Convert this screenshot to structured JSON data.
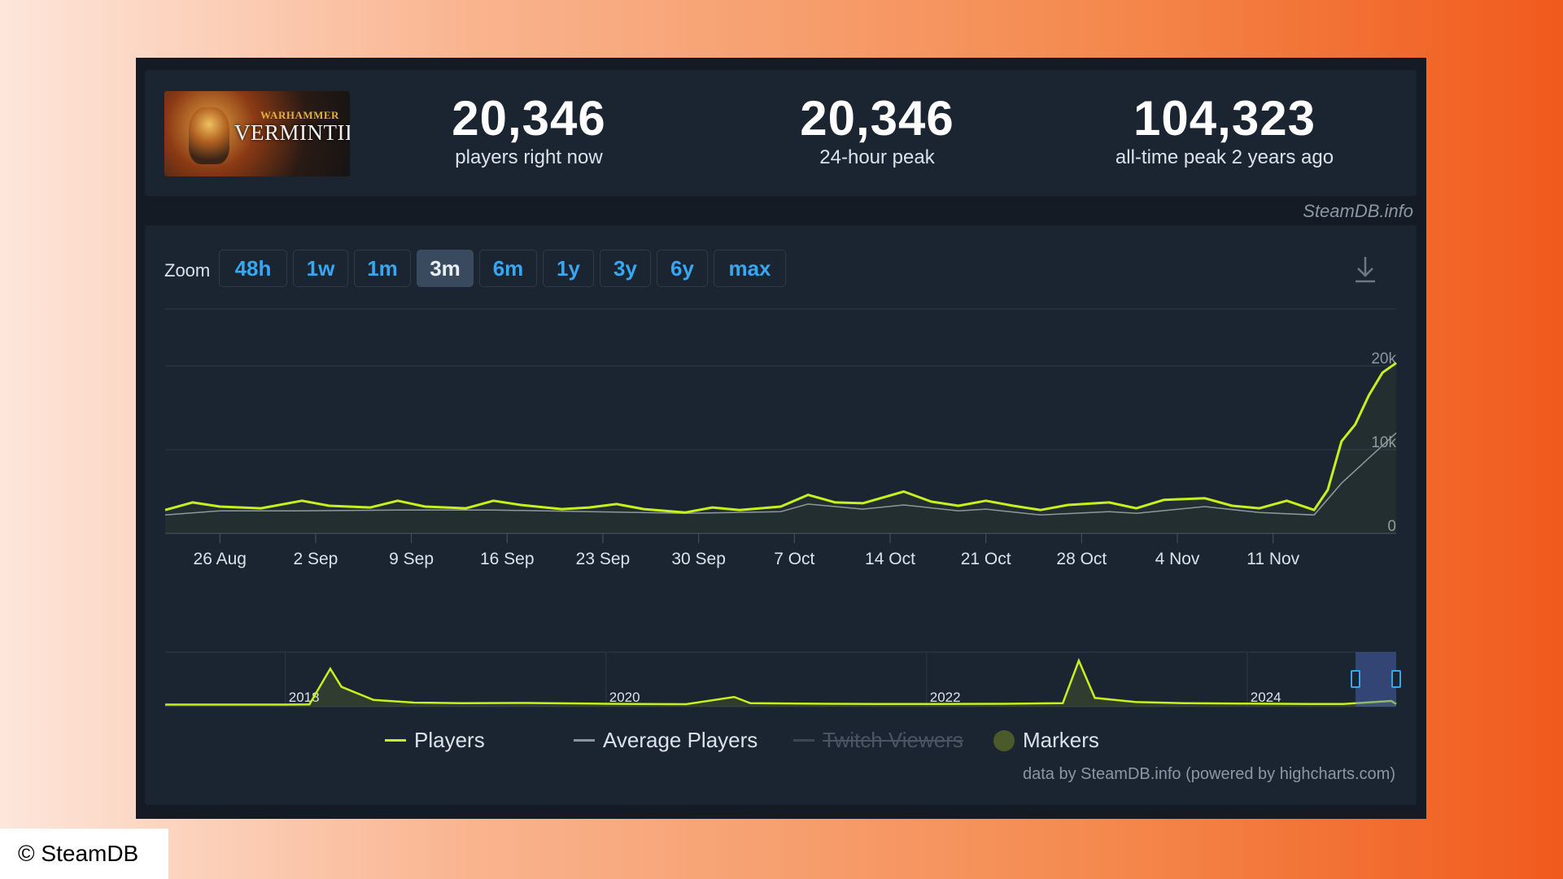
{
  "game": {
    "image_subtitle": "WARHAMMER",
    "image_title": "VERMINTIDE"
  },
  "stats": [
    {
      "value": "20,346",
      "label": "players right now"
    },
    {
      "value": "20,346",
      "label": "24-hour peak"
    },
    {
      "value": "104,323",
      "label": "all-time peak 2 years ago"
    }
  ],
  "credit": "SteamDB.info",
  "zoom": {
    "label": "Zoom",
    "buttons": [
      "48h",
      "1w",
      "1m",
      "3m",
      "6m",
      "1y",
      "3y",
      "6y",
      "max"
    ],
    "active": "3m"
  },
  "icons": {
    "download": "download-icon"
  },
  "colors": {
    "players": "#c8f01e",
    "average": "#8a95a2",
    "twitch": "#3b4656",
    "markers": "#4b5a2a",
    "active_zoom": "#3a4a5e",
    "zoom_text": "#37a7f2"
  },
  "chart_data": {
    "type": "line",
    "x_tick_labels": [
      "26 Aug",
      "2 Sep",
      "9 Sep",
      "16 Sep",
      "23 Sep",
      "30 Sep",
      "7 Oct",
      "14 Oct",
      "21 Oct",
      "28 Oct",
      "4 Nov",
      "11 Nov"
    ],
    "y_tick_labels": [
      "0",
      "10k",
      "20k"
    ],
    "ylim": [
      0,
      20000
    ],
    "x_start": "2024-08-22",
    "x_end": "2024-11-20",
    "series": [
      {
        "name": "Players",
        "points": [
          [
            "2024-08-22",
            2800
          ],
          [
            "2024-08-24",
            3700
          ],
          [
            "2024-08-26",
            3200
          ],
          [
            "2024-08-29",
            3000
          ],
          [
            "2024-09-01",
            3900
          ],
          [
            "2024-09-03",
            3300
          ],
          [
            "2024-09-06",
            3100
          ],
          [
            "2024-09-08",
            3900
          ],
          [
            "2024-09-10",
            3200
          ],
          [
            "2024-09-13",
            3000
          ],
          [
            "2024-09-15",
            3900
          ],
          [
            "2024-09-17",
            3400
          ],
          [
            "2024-09-20",
            2900
          ],
          [
            "2024-09-22",
            3100
          ],
          [
            "2024-09-24",
            3500
          ],
          [
            "2024-09-26",
            2900
          ],
          [
            "2024-09-29",
            2500
          ],
          [
            "2024-10-01",
            3100
          ],
          [
            "2024-10-03",
            2800
          ],
          [
            "2024-10-06",
            3200
          ],
          [
            "2024-10-08",
            4600
          ],
          [
            "2024-10-10",
            3700
          ],
          [
            "2024-10-12",
            3600
          ],
          [
            "2024-10-15",
            5000
          ],
          [
            "2024-10-17",
            3800
          ],
          [
            "2024-10-19",
            3300
          ],
          [
            "2024-10-21",
            3900
          ],
          [
            "2024-10-23",
            3300
          ],
          [
            "2024-10-25",
            2800
          ],
          [
            "2024-10-27",
            3400
          ],
          [
            "2024-10-30",
            3700
          ],
          [
            "2024-11-01",
            3000
          ],
          [
            "2024-11-03",
            4000
          ],
          [
            "2024-11-06",
            4200
          ],
          [
            "2024-11-08",
            3300
          ],
          [
            "2024-11-10",
            3000
          ],
          [
            "2024-11-12",
            3900
          ],
          [
            "2024-11-14",
            2800
          ],
          [
            "2024-11-15",
            5200
          ],
          [
            "2024-11-16",
            11000
          ],
          [
            "2024-11-17",
            13000
          ],
          [
            "2024-11-18",
            16500
          ],
          [
            "2024-11-19",
            19200
          ],
          [
            "2024-11-20",
            20346
          ]
        ]
      },
      {
        "name": "Average Players",
        "points": [
          [
            "2024-08-22",
            2200
          ],
          [
            "2024-08-26",
            2700
          ],
          [
            "2024-09-01",
            2700
          ],
          [
            "2024-09-08",
            2800
          ],
          [
            "2024-09-15",
            2800
          ],
          [
            "2024-09-22",
            2600
          ],
          [
            "2024-09-29",
            2400
          ],
          [
            "2024-10-06",
            2600
          ],
          [
            "2024-10-08",
            3500
          ],
          [
            "2024-10-12",
            2900
          ],
          [
            "2024-10-15",
            3400
          ],
          [
            "2024-10-19",
            2700
          ],
          [
            "2024-10-21",
            2900
          ],
          [
            "2024-10-25",
            2200
          ],
          [
            "2024-10-30",
            2600
          ],
          [
            "2024-11-01",
            2400
          ],
          [
            "2024-11-06",
            3200
          ],
          [
            "2024-11-10",
            2500
          ],
          [
            "2024-11-14",
            2200
          ],
          [
            "2024-11-16",
            6000
          ],
          [
            "2024-11-18",
            9000
          ],
          [
            "2024-11-20",
            12000
          ]
        ]
      },
      {
        "name": "Twitch Viewers",
        "hidden": true,
        "points": []
      },
      {
        "name": "Markers",
        "points": []
      }
    ],
    "navigator": {
      "year_labels": [
        "2018",
        "2020",
        "2022",
        "2024"
      ],
      "points": [
        [
          2017.25,
          200
        ],
        [
          2018.0,
          200
        ],
        [
          2018.15,
          300
        ],
        [
          2018.28,
          18000
        ],
        [
          2018.35,
          9000
        ],
        [
          2018.55,
          2500
        ],
        [
          2018.8,
          1200
        ],
        [
          2019.1,
          900
        ],
        [
          2019.5,
          1000
        ],
        [
          2019.9,
          700
        ],
        [
          2020.0,
          600
        ],
        [
          2020.2,
          500
        ],
        [
          2020.5,
          400
        ],
        [
          2020.8,
          4000
        ],
        [
          2020.9,
          900
        ],
        [
          2021.2,
          700
        ],
        [
          2021.7,
          500
        ],
        [
          2022.0,
          500
        ],
        [
          2022.5,
          600
        ],
        [
          2022.85,
          900
        ],
        [
          2022.95,
          22000
        ],
        [
          2023.05,
          3500
        ],
        [
          2023.3,
          1500
        ],
        [
          2023.6,
          900
        ],
        [
          2024.0,
          700
        ],
        [
          2024.4,
          500
        ],
        [
          2024.6,
          500
        ],
        [
          2024.9,
          2000
        ]
      ],
      "selected_range": [
        "2024-08-22",
        "2024-11-20"
      ]
    }
  },
  "legend": {
    "players": "Players",
    "average": "Average Players",
    "twitch": "Twitch Viewers",
    "markers": "Markers"
  },
  "data_credit": "data by SteamDB.info (powered by highcharts.com)",
  "copyright": "© SteamDB"
}
